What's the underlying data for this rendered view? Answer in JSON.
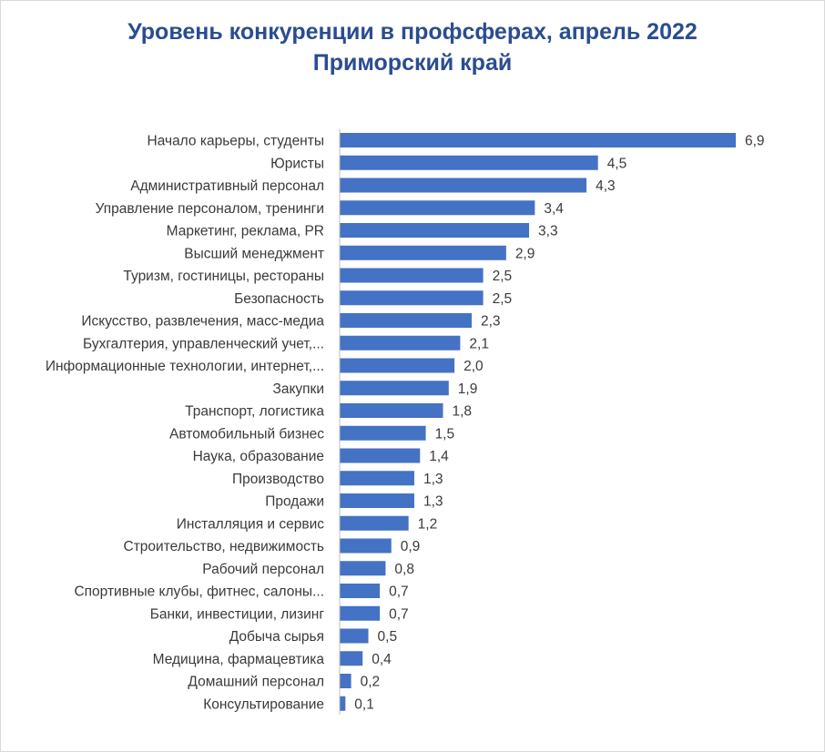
{
  "chart_data": {
    "type": "bar",
    "orientation": "horizontal",
    "title": "Уровень конкуренции в профсферах, апрель 2022",
    "subtitle": "Приморский край",
    "xlabel": "",
    "ylabel": "",
    "xlim": [
      0,
      6.9
    ],
    "grid": false,
    "legend": "none",
    "bar_color": "#4472C4",
    "title_color": "#2A4D8F",
    "categories": [
      "Начало карьеры, студенты",
      "Юристы",
      "Административный персонал",
      "Управление персоналом, тренинги",
      "Маркетинг, реклама, PR",
      "Высший менеджмент",
      "Туризм, гостиницы, рестораны",
      "Безопасность",
      "Искусство, развлечения, масс-медиа",
      "Бухгалтерия, управленческий учет,...",
      "Информационные технологии, интернет,...",
      "Закупки",
      "Транспорт, логистика",
      "Автомобильный бизнес",
      "Наука, образование",
      "Производство",
      "Продажи",
      "Инсталляция и сервис",
      "Строительство, недвижимость",
      "Рабочий персонал",
      "Спортивные клубы, фитнес, салоны...",
      "Банки, инвестиции, лизинг",
      "Добыча сырья",
      "Медицина, фармацевтика",
      "Домашний персонал",
      "Консультирование"
    ],
    "values": [
      6.9,
      4.5,
      4.3,
      3.4,
      3.3,
      2.9,
      2.5,
      2.5,
      2.3,
      2.1,
      2.0,
      1.9,
      1.8,
      1.5,
      1.4,
      1.3,
      1.3,
      1.2,
      0.9,
      0.8,
      0.7,
      0.7,
      0.5,
      0.4,
      0.2,
      0.1
    ],
    "value_labels": [
      "6,9",
      "4,5",
      "4,3",
      "3,4",
      "3,3",
      "2,9",
      "2,5",
      "2,5",
      "2,3",
      "2,1",
      "2,0",
      "1,9",
      "1,8",
      "1,5",
      "1,4",
      "1,3",
      "1,3",
      "1,2",
      "0,9",
      "0,8",
      "0,7",
      "0,7",
      "0,5",
      "0,4",
      "0,2",
      "0,1"
    ]
  }
}
